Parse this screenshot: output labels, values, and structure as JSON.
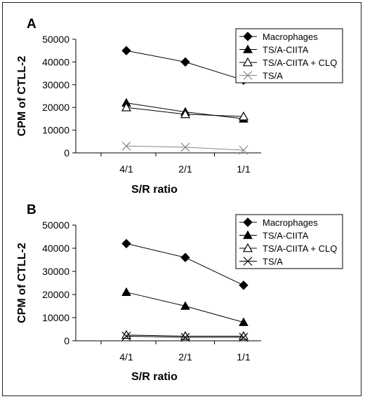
{
  "chart_data": [
    {
      "panel": "A",
      "type": "line",
      "categories": [
        "4/1",
        "2/1",
        "1/1"
      ],
      "xlabel": "S/R ratio",
      "ylabel": "CPM of CTLL-2",
      "ylim": [
        0,
        50000
      ],
      "yticks": [
        0,
        10000,
        20000,
        30000,
        40000,
        50000
      ],
      "legend_position": "top-right",
      "grid": false,
      "series": [
        {
          "name": "Macrophages",
          "marker": "filled-diamond",
          "color": "#000000",
          "values": [
            45000,
            40000,
            32000
          ]
        },
        {
          "name": "TS/A-CIITA",
          "marker": "filled-triangle",
          "color": "#000000",
          "values": [
            22000,
            18000,
            15000
          ]
        },
        {
          "name": "TS/A-CIITA + CLQ",
          "marker": "open-triangle",
          "color": "#000000",
          "values": [
            20000,
            17000,
            16000
          ]
        },
        {
          "name": "TS/A",
          "marker": "x",
          "color": "#888888",
          "values": [
            3000,
            2500,
            1200
          ]
        }
      ]
    },
    {
      "panel": "B",
      "type": "line",
      "categories": [
        "4/1",
        "2/1",
        "1/1"
      ],
      "xlabel": "S/R ratio",
      "ylabel": "CPM of CTLL-2",
      "ylim": [
        0,
        50000
      ],
      "yticks": [
        0,
        10000,
        20000,
        30000,
        40000,
        50000
      ],
      "legend_position": "top-right",
      "grid": false,
      "series": [
        {
          "name": "Macrophages",
          "marker": "filled-diamond",
          "color": "#000000",
          "values": [
            42000,
            36000,
            24000
          ]
        },
        {
          "name": "TS/A-CIITA",
          "marker": "filled-triangle",
          "color": "#000000",
          "values": [
            21000,
            15000,
            8000
          ]
        },
        {
          "name": "TS/A-CIITA + CLQ",
          "marker": "open-triangle",
          "color": "#000000",
          "values": [
            2500,
            2000,
            2000
          ]
        },
        {
          "name": "TS/A",
          "marker": "x",
          "color": "#000000",
          "values": [
            2000,
            1500,
            1500
          ]
        }
      ]
    }
  ]
}
